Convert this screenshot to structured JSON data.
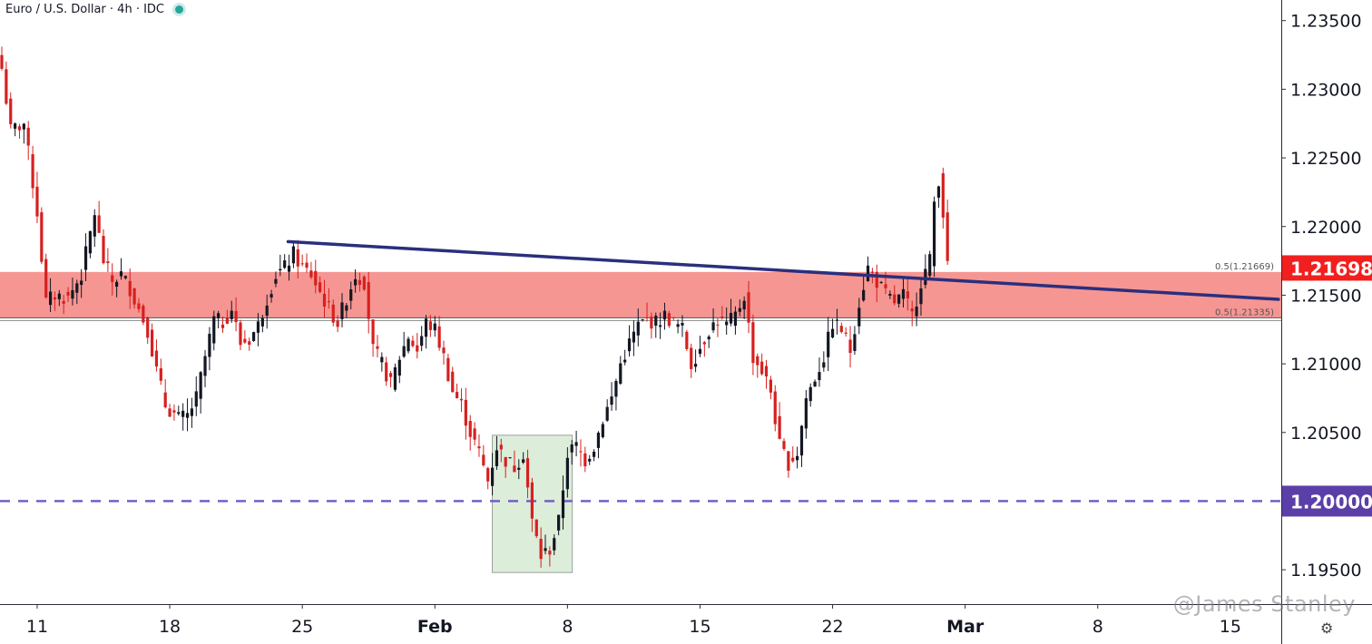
{
  "header": {
    "title": "Euro / U.S. Dollar · 4h · IDC"
  },
  "watermark": "@James Stanley",
  "settings_icon": "gear-icon",
  "colors": {
    "up": "#131722",
    "down": "#d6201f",
    "zone_fill": "#f4847f",
    "trendline": "#2a2f7e",
    "support_dash": "#7157c5",
    "last_price_bg": "#f21f1f",
    "level_bg": "#5b3fa8",
    "green_box": "#dcedda"
  },
  "chart_data": {
    "type": "candlestick",
    "symbol": "Euro / U.S. Dollar",
    "interval": "4h",
    "source": "IDC",
    "ylim": [
      1.1925,
      1.2365
    ],
    "y_ticks": [
      "1.19500",
      "1.20000",
      "1.20500",
      "1.21000",
      "1.21500",
      "1.22000",
      "1.22500",
      "1.23000",
      "1.23500"
    ],
    "x_ticks": [
      {
        "label": "11",
        "bold": false,
        "xi": 8
      },
      {
        "label": "18",
        "bold": false,
        "xi": 38
      },
      {
        "label": "25",
        "bold": false,
        "xi": 68
      },
      {
        "label": "Feb",
        "bold": true,
        "xi": 98
      },
      {
        "label": "8",
        "bold": false,
        "xi": 128
      },
      {
        "label": "15",
        "bold": false,
        "xi": 158
      },
      {
        "label": "22",
        "bold": false,
        "xi": 188
      },
      {
        "label": "Mar",
        "bold": true,
        "xi": 218
      },
      {
        "label": "8",
        "bold": false,
        "xi": 248
      },
      {
        "label": "15",
        "bold": false,
        "xi": 278
      }
    ],
    "last_price": "1.21698",
    "level_label": "1.20000",
    "zone": {
      "top": 1.21669,
      "bottom": 1.21335,
      "top_label": "0.5(1.21669)",
      "bottom_label": "0.5(1.21335)"
    },
    "support_level": 1.2,
    "trendline": {
      "from": {
        "xi": 65.2,
        "y": 1.2189
      },
      "to": {
        "xi": 289.3,
        "y": 1.2147
      }
    },
    "highlight_box": {
      "xi_from": 111.4,
      "xi_to": 129.5,
      "y_top": 1.2048,
      "y_bottom": 1.1948
    },
    "candle_keys": [
      {
        "i": 0,
        "p": 1.2315
      },
      {
        "i": 2,
        "p": 1.227
      },
      {
        "i": 5,
        "p": 1.2275
      },
      {
        "i": 8,
        "p": 1.221
      },
      {
        "i": 10,
        "p": 1.2145
      },
      {
        "i": 12,
        "p": 1.215
      },
      {
        "i": 15,
        "p": 1.2148
      },
      {
        "i": 18,
        "p": 1.2165
      },
      {
        "i": 21,
        "p": 1.221
      },
      {
        "i": 23,
        "p": 1.2175
      },
      {
        "i": 25,
        "p": 1.216
      },
      {
        "i": 27,
        "p": 1.2165
      },
      {
        "i": 29,
        "p": 1.2155
      },
      {
        "i": 31,
        "p": 1.214
      },
      {
        "i": 33,
        "p": 1.2125
      },
      {
        "i": 35,
        "p": 1.2095
      },
      {
        "i": 37,
        "p": 1.207
      },
      {
        "i": 40,
        "p": 1.206
      },
      {
        "i": 42,
        "p": 1.2062
      },
      {
        "i": 44,
        "p": 1.2075
      },
      {
        "i": 46,
        "p": 1.2105
      },
      {
        "i": 48,
        "p": 1.2132
      },
      {
        "i": 50,
        "p": 1.213
      },
      {
        "i": 52,
        "p": 1.214
      },
      {
        "i": 54,
        "p": 1.2115
      },
      {
        "i": 56,
        "p": 1.2118
      },
      {
        "i": 58,
        "p": 1.2128
      },
      {
        "i": 60,
        "p": 1.2148
      },
      {
        "i": 62,
        "p": 1.2165
      },
      {
        "i": 64,
        "p": 1.217
      },
      {
        "i": 66,
        "p": 1.218
      },
      {
        "i": 68,
        "p": 1.217
      },
      {
        "i": 70,
        "p": 1.2165
      },
      {
        "i": 72,
        "p": 1.2152
      },
      {
        "i": 74,
        "p": 1.214
      },
      {
        "i": 76,
        "p": 1.213
      },
      {
        "i": 78,
        "p": 1.2148
      },
      {
        "i": 80,
        "p": 1.2165
      },
      {
        "i": 82,
        "p": 1.216
      },
      {
        "i": 84,
        "p": 1.211
      },
      {
        "i": 86,
        "p": 1.21
      },
      {
        "i": 88,
        "p": 1.2085
      },
      {
        "i": 90,
        "p": 1.2105
      },
      {
        "i": 92,
        "p": 1.212
      },
      {
        "i": 94,
        "p": 1.211
      },
      {
        "i": 96,
        "p": 1.213
      },
      {
        "i": 98,
        "p": 1.2125
      },
      {
        "i": 100,
        "p": 1.2105
      },
      {
        "i": 102,
        "p": 1.208
      },
      {
        "i": 104,
        "p": 1.207
      },
      {
        "i": 106,
        "p": 1.205
      },
      {
        "i": 108,
        "p": 1.2035
      },
      {
        "i": 110,
        "p": 1.2015
      },
      {
        "i": 112,
        "p": 1.204
      },
      {
        "i": 114,
        "p": 1.203
      },
      {
        "i": 116,
        "p": 1.2025
      },
      {
        "i": 118,
        "p": 1.2035
      },
      {
        "i": 120,
        "p": 1.1985
      },
      {
        "i": 122,
        "p": 1.196
      },
      {
        "i": 124,
        "p": 1.1965
      },
      {
        "i": 126,
        "p": 1.1985
      },
      {
        "i": 128,
        "p": 1.2035
      },
      {
        "i": 130,
        "p": 1.204
      },
      {
        "i": 132,
        "p": 1.203
      },
      {
        "i": 134,
        "p": 1.204
      },
      {
        "i": 136,
        "p": 1.206
      },
      {
        "i": 138,
        "p": 1.2075
      },
      {
        "i": 140,
        "p": 1.21
      },
      {
        "i": 142,
        "p": 1.2115
      },
      {
        "i": 144,
        "p": 1.2128
      },
      {
        "i": 146,
        "p": 1.2132
      },
      {
        "i": 148,
        "p": 1.213
      },
      {
        "i": 150,
        "p": 1.2135
      },
      {
        "i": 152,
        "p": 1.213
      },
      {
        "i": 154,
        "p": 1.2125
      },
      {
        "i": 156,
        "p": 1.21
      },
      {
        "i": 158,
        "p": 1.2112
      },
      {
        "i": 160,
        "p": 1.2125
      },
      {
        "i": 162,
        "p": 1.2132
      },
      {
        "i": 164,
        "p": 1.2128
      },
      {
        "i": 166,
        "p": 1.2135
      },
      {
        "i": 168,
        "p": 1.215
      },
      {
        "i": 170,
        "p": 1.2105
      },
      {
        "i": 172,
        "p": 1.2095
      },
      {
        "i": 174,
        "p": 1.208
      },
      {
        "i": 176,
        "p": 1.204
      },
      {
        "i": 178,
        "p": 1.2028
      },
      {
        "i": 180,
        "p": 1.2035
      },
      {
        "i": 182,
        "p": 1.2075
      },
      {
        "i": 184,
        "p": 1.209
      },
      {
        "i": 186,
        "p": 1.2105
      },
      {
        "i": 188,
        "p": 1.213
      },
      {
        "i": 190,
        "p": 1.2125
      },
      {
        "i": 192,
        "p": 1.211
      },
      {
        "i": 194,
        "p": 1.2145
      },
      {
        "i": 196,
        "p": 1.217
      },
      {
        "i": 198,
        "p": 1.216
      },
      {
        "i": 200,
        "p": 1.215
      },
      {
        "i": 202,
        "p": 1.2145
      },
      {
        "i": 204,
        "p": 1.215
      },
      {
        "i": 206,
        "p": 1.2135
      },
      {
        "i": 208,
        "p": 1.216
      },
      {
        "i": 210,
        "p": 1.2175
      },
      {
        "i": 211,
        "p": 1.2218
      },
      {
        "i": 212,
        "p": 1.2235
      },
      {
        "i": 213,
        "p": 1.221
      },
      {
        "i": 214,
        "p": 1.217
      }
    ]
  }
}
